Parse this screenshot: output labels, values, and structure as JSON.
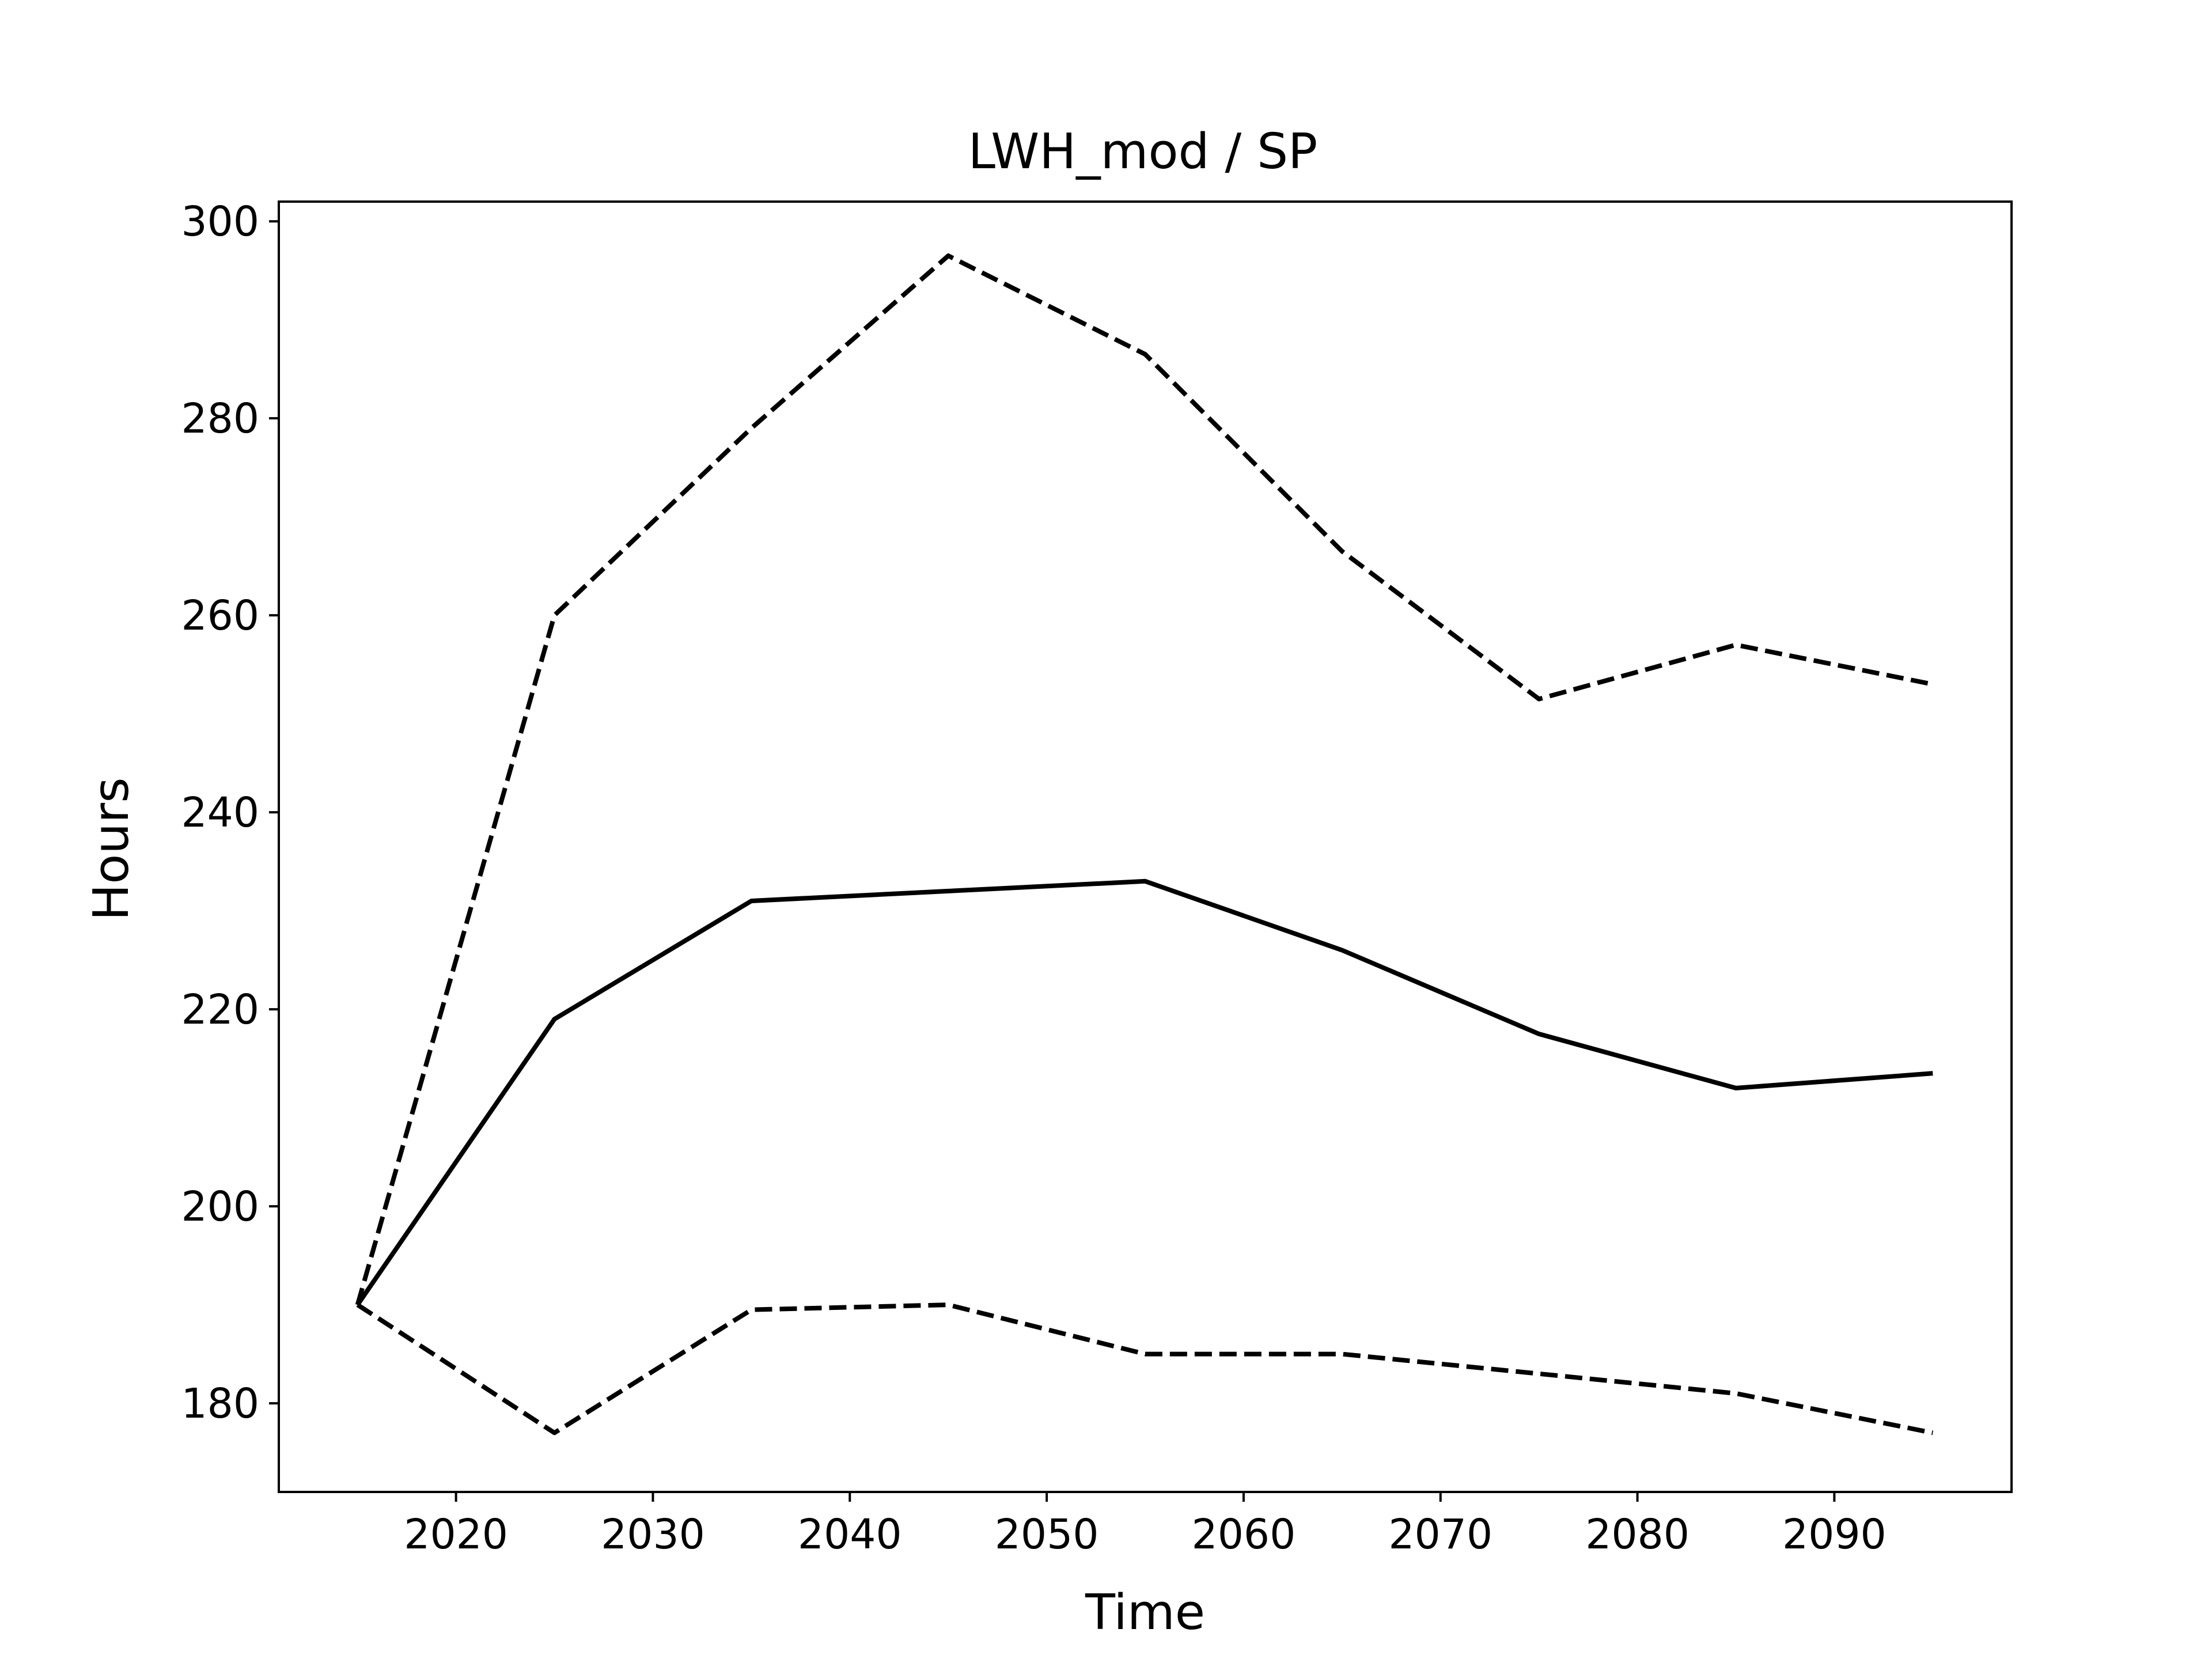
{
  "chart_data": {
    "type": "line",
    "title": "LWH_mod / SP",
    "xlabel": "Time",
    "ylabel": "Hours",
    "xlim": [
      2011,
      2099
    ],
    "ylim": [
      171,
      302
    ],
    "xticks": [
      2020,
      2030,
      2040,
      2050,
      2060,
      2070,
      2080,
      2090
    ],
    "yticks": [
      180,
      200,
      220,
      240,
      260,
      280,
      300
    ],
    "grid": false,
    "x": [
      2015,
      2025,
      2035,
      2045,
      2055,
      2065,
      2075,
      2085,
      2095
    ],
    "series": [
      {
        "style": "solid",
        "color": "#000000",
        "values": [
          190,
          219,
          231,
          232,
          233,
          226,
          217.5,
          212,
          213.5
        ]
      },
      {
        "style": "dashed",
        "color": "#000000",
        "values": [
          190,
          260,
          279,
          296.5,
          286.5,
          266.5,
          251.5,
          257,
          253
        ]
      },
      {
        "style": "dashed",
        "color": "#000000",
        "values": [
          190,
          177,
          189.5,
          190,
          185,
          185,
          183,
          181,
          177
        ]
      }
    ]
  }
}
